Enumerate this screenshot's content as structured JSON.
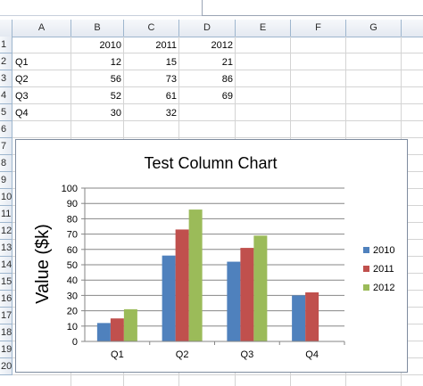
{
  "sheet": {
    "columns": [
      "A",
      "B",
      "C",
      "D",
      "E",
      "F",
      "G"
    ],
    "rows": [
      "1",
      "2",
      "3",
      "4",
      "5",
      "6",
      "7",
      "8",
      "9",
      "10",
      "11",
      "12",
      "13",
      "14",
      "15",
      "16",
      "17",
      "18",
      "19",
      "20"
    ],
    "cells": {
      "B1": "2010",
      "C1": "2011",
      "D1": "2012",
      "A2": "Q1",
      "B2": "12",
      "C2": "15",
      "D2": "21",
      "A3": "Q2",
      "B3": "56",
      "C3": "73",
      "D3": "86",
      "A4": "Q3",
      "B4": "52",
      "C4": "61",
      "D4": "69",
      "A5": "Q4",
      "B5": "30",
      "C5": "32"
    }
  },
  "chart_data": {
    "type": "bar",
    "title": "Test Column Chart",
    "xlabel": "",
    "ylabel": "Value ($k)",
    "categories": [
      "Q1",
      "Q2",
      "Q3",
      "Q4"
    ],
    "series": [
      {
        "name": "2010",
        "values": [
          12,
          56,
          52,
          30
        ],
        "color": "#4f81bd"
      },
      {
        "name": "2011",
        "values": [
          15,
          73,
          61,
          32
        ],
        "color": "#c0504d"
      },
      {
        "name": "2012",
        "values": [
          21,
          86,
          69,
          null
        ],
        "color": "#9bbb59"
      }
    ],
    "ylim": [
      0,
      100
    ],
    "yticks": [
      "0",
      "10",
      "20",
      "30",
      "40",
      "50",
      "60",
      "70",
      "80",
      "90",
      "100"
    ],
    "grid": true,
    "legend": "right"
  }
}
